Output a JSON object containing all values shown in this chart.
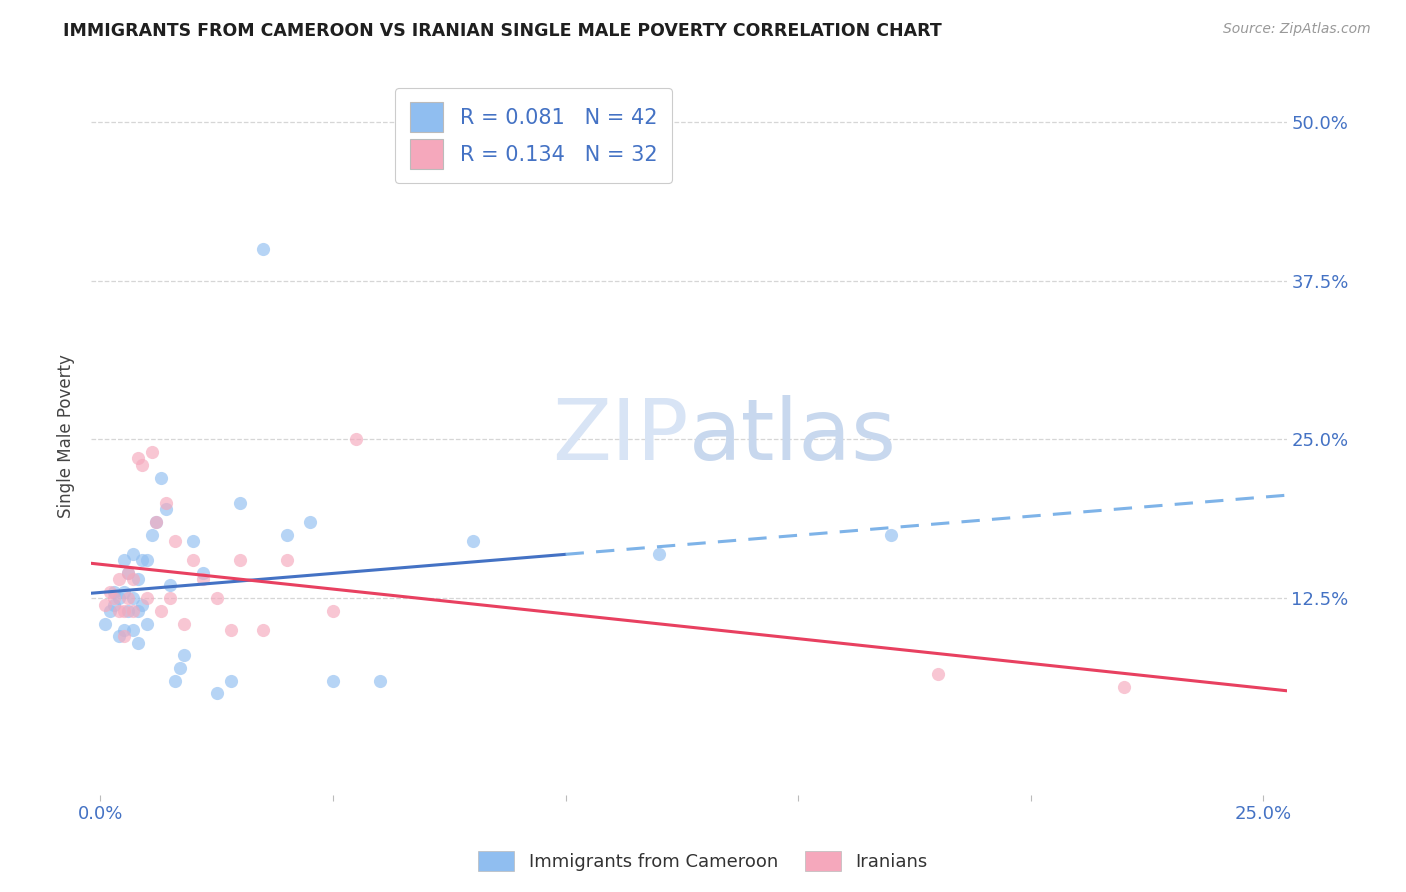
{
  "title": "IMMIGRANTS FROM CAMEROON VS IRANIAN SINGLE MALE POVERTY CORRELATION CHART",
  "source": "Source: ZipAtlas.com",
  "ylabel": "Single Male Poverty",
  "ytick_labels": [
    "12.5%",
    "25.0%",
    "37.5%",
    "50.0%"
  ],
  "ytick_values": [
    0.125,
    0.25,
    0.375,
    0.5
  ],
  "xtick_values": [
    0.0,
    0.05,
    0.1,
    0.15,
    0.2,
    0.25
  ],
  "xtick_labels": [
    "0.0%",
    "",
    "",
    "",
    "",
    "25.0%"
  ],
  "xlim": [
    -0.002,
    0.255
  ],
  "ylim": [
    -0.03,
    0.535
  ],
  "r_cameroon": 0.081,
  "n_cameroon": 42,
  "r_iranians": 0.134,
  "n_iranians": 32,
  "color_cameroon": "#90BEF0",
  "color_iranians": "#F5A8BC",
  "color_text_blue": "#4472C4",
  "color_title": "#1F1F1F",
  "color_source": "#999999",
  "color_grid": "#CCCCCC",
  "color_line_cameroon_solid": "#4472C4",
  "color_line_cameroon_dashed": "#7EB3E8",
  "color_line_iranians": "#E84060",
  "scatter_alpha": 0.65,
  "scatter_size": 90,
  "cameroon_x": [
    0.001,
    0.002,
    0.003,
    0.003,
    0.004,
    0.004,
    0.005,
    0.005,
    0.005,
    0.006,
    0.006,
    0.007,
    0.007,
    0.007,
    0.008,
    0.008,
    0.008,
    0.009,
    0.009,
    0.01,
    0.01,
    0.011,
    0.012,
    0.013,
    0.014,
    0.015,
    0.016,
    0.017,
    0.018,
    0.02,
    0.022,
    0.025,
    0.028,
    0.03,
    0.035,
    0.04,
    0.045,
    0.05,
    0.06,
    0.08,
    0.12,
    0.17
  ],
  "cameroon_y": [
    0.105,
    0.115,
    0.13,
    0.12,
    0.125,
    0.095,
    0.155,
    0.13,
    0.1,
    0.145,
    0.115,
    0.16,
    0.125,
    0.1,
    0.14,
    0.115,
    0.09,
    0.155,
    0.12,
    0.155,
    0.105,
    0.175,
    0.185,
    0.22,
    0.195,
    0.135,
    0.06,
    0.07,
    0.08,
    0.17,
    0.145,
    0.05,
    0.06,
    0.2,
    0.4,
    0.175,
    0.185,
    0.06,
    0.06,
    0.17,
    0.16,
    0.175
  ],
  "iranians_x": [
    0.001,
    0.002,
    0.003,
    0.004,
    0.004,
    0.005,
    0.005,
    0.006,
    0.006,
    0.007,
    0.007,
    0.008,
    0.009,
    0.01,
    0.011,
    0.012,
    0.013,
    0.014,
    0.015,
    0.016,
    0.018,
    0.02,
    0.022,
    0.025,
    0.028,
    0.03,
    0.035,
    0.04,
    0.05,
    0.055,
    0.18,
    0.22
  ],
  "iranians_y": [
    0.12,
    0.13,
    0.125,
    0.14,
    0.115,
    0.115,
    0.095,
    0.145,
    0.125,
    0.14,
    0.115,
    0.235,
    0.23,
    0.125,
    0.24,
    0.185,
    0.115,
    0.2,
    0.125,
    0.17,
    0.105,
    0.155,
    0.14,
    0.125,
    0.1,
    0.155,
    0.1,
    0.155,
    0.115,
    0.25,
    0.065,
    0.055
  ],
  "legend_label_cameroon": "Immigrants from Cameroon",
  "legend_label_iranians": "Iranians",
  "watermark_zip": "ZIP",
  "watermark_atlas": "atlas",
  "watermark_color": "#D8E4F5",
  "watermark_fontsize": 62,
  "line_switch_x": 0.1
}
